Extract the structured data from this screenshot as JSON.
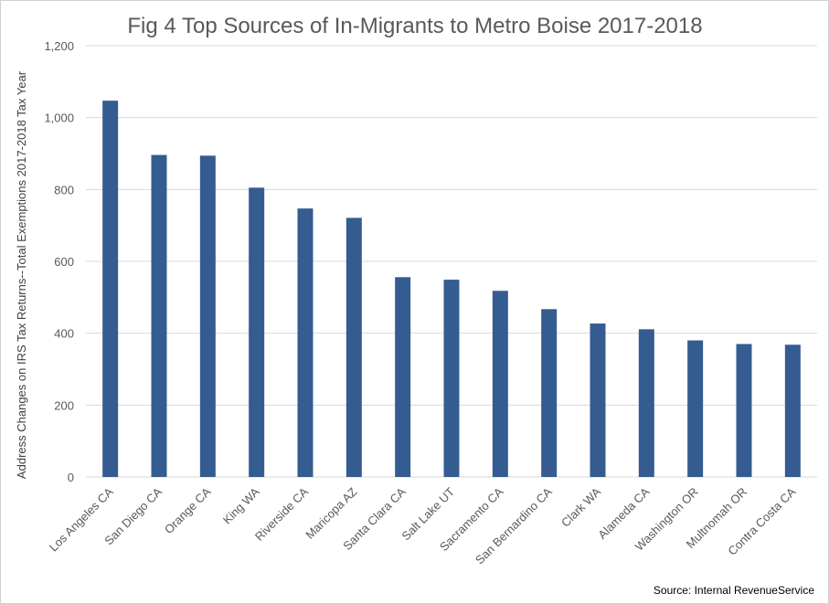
{
  "chart_data": {
    "type": "bar",
    "title": "Fig 4 Top Sources of In-Migrants to Metro Boise 2017-2018",
    "ylabel": "Address Changes on IRS Tax Returns--Total Exemptions 2017-2018 Tax Year",
    "xlabel": "",
    "source": "Source: Internal RevenueService",
    "categories": [
      "Los Angeles CA",
      "San Diego CA",
      "Orange CA",
      "King WA",
      "Riverside CA",
      "Maricopa AZ",
      "Santa Clara CA",
      "Salt Lake UT",
      "Sacramento CA",
      "San Bernardino CA",
      "Clark WA",
      "Alameda CA",
      "Washington OR",
      "Multnomah OR",
      "Contra Costa CA"
    ],
    "values": [
      1047,
      896,
      894,
      805,
      747,
      721,
      556,
      549,
      518,
      467,
      427,
      411,
      380,
      370,
      368
    ],
    "ylim": [
      0,
      1200
    ],
    "yticks": [
      "0",
      "200",
      "400",
      "600",
      "800",
      "1,000",
      "1,200"
    ],
    "grid": true,
    "legend": "none",
    "bar_color": "#355c91",
    "grid_color": "#d9d9d9"
  }
}
